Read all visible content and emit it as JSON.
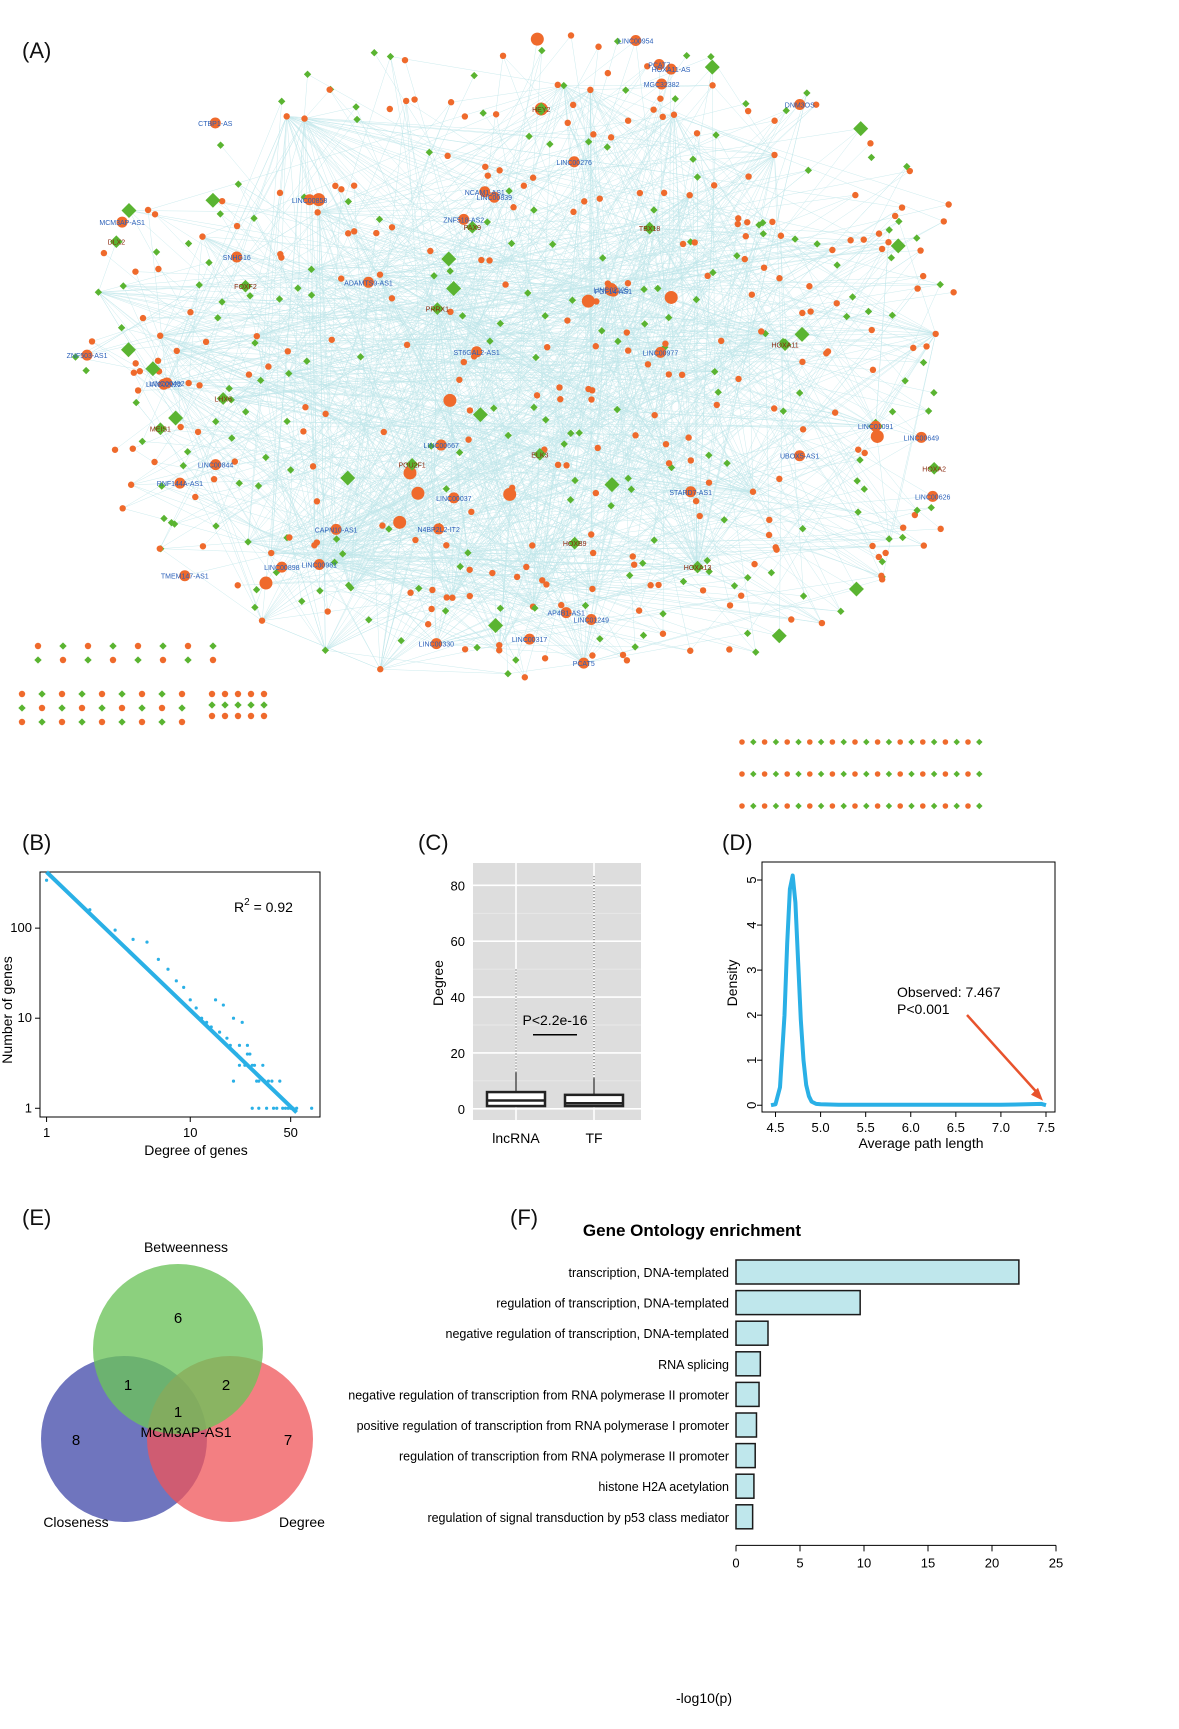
{
  "panels": {
    "a": "(A)",
    "b": "(B)",
    "c": "(C)",
    "d": "(D)",
    "e": "(E)",
    "f": "(F)"
  },
  "colors": {
    "lncrna": "#ef6a2c",
    "tf": "#5ab431",
    "edge": "#bfe6ea",
    "line": "#2ab0e6",
    "arrow": "#e8532d",
    "ggplot_bg": "#dddddd",
    "bar": "#bfe7ec",
    "venn_green": "#6cc35a",
    "venn_blue": "#4f57b0",
    "venn_red": "#ef5458"
  },
  "network": {
    "legend_note": "",
    "node_types": [
      "lncrna-circle",
      "tf-diamond"
    ],
    "gene_labels": [
      "TBX18",
      "PRRX1",
      "LINC00330",
      "LINC01091",
      "HOXA13",
      "LINC00482",
      "PCAT5",
      "FGF14-AS1",
      "LINC00981",
      "DLX2",
      "HOXA2",
      "LINC00977",
      "LINC00858",
      "LINC00317",
      "HOXA11",
      "FOXF2",
      "HOXB9",
      "LHX6",
      "SNHG16",
      "LINC00844",
      "ST6GAL2-AS1",
      "ADAMTS9-AS1",
      "LINC00626",
      "LINC00839",
      "HOXA11-AS",
      "HEY2",
      "LINC00667",
      "PAX9",
      "LINC02125",
      "LINC01249",
      "LINC00649",
      "PCAT7",
      "LINC00276",
      "LINC02022",
      "MGC32382",
      "LINC00037",
      "AP4B1-AS1",
      "N4BP2L2-IT2",
      "ELK3",
      "CAPN10-AS1",
      "LINC00954",
      "LINC00898",
      "ZNF518-AS2",
      "MEIS1",
      "RNF144A-AS1",
      "MCM3AP-AS1",
      "STARD7-AS1",
      "NCAM1-AS1",
      "POU2F1",
      "TMEM147-AS1",
      "CTBP1-AS",
      "UBOX5-AS1",
      "DNM3OS",
      "ZNF503-AS1"
    ]
  },
  "chart_data": [
    {
      "panel": "B",
      "type": "scatter",
      "title": "",
      "xlabel": "Degree of genes",
      "ylabel": "Number of genes",
      "xscale": "log",
      "yscale": "log",
      "xlim": [
        0.9,
        80
      ],
      "ylim": [
        0.8,
        420
      ],
      "xticks": [
        1,
        10,
        50
      ],
      "yticks": [
        1,
        10,
        100
      ],
      "annotation": "R² = 0.92",
      "annotation_base": "R",
      "annotation_sup": "2",
      "annotation_rest": " = 0.92",
      "points": [
        [
          1,
          340
        ],
        [
          2,
          160
        ],
        [
          3,
          95
        ],
        [
          4,
          75
        ],
        [
          5,
          70
        ],
        [
          6,
          45
        ],
        [
          7,
          35
        ],
        [
          8,
          26
        ],
        [
          9,
          22
        ],
        [
          10,
          16
        ],
        [
          11,
          13
        ],
        [
          12,
          10
        ],
        [
          13,
          9
        ],
        [
          14,
          8
        ],
        [
          15,
          16
        ],
        [
          16,
          7
        ],
        [
          17,
          14
        ],
        [
          18,
          6
        ],
        [
          19,
          5
        ],
        [
          20,
          10
        ],
        [
          21,
          4
        ],
        [
          22,
          5
        ],
        [
          23,
          9
        ],
        [
          24,
          3
        ],
        [
          25,
          4
        ],
        [
          26,
          4
        ],
        [
          27,
          3
        ],
        [
          28,
          3
        ],
        [
          29,
          2
        ],
        [
          30,
          2
        ],
        [
          32,
          3
        ],
        [
          33,
          2
        ],
        [
          35,
          2
        ],
        [
          37,
          2
        ],
        [
          38,
          1
        ],
        [
          40,
          1
        ],
        [
          42,
          2
        ],
        [
          44,
          1
        ],
        [
          46,
          1
        ],
        [
          48,
          1
        ],
        [
          50,
          1
        ],
        [
          52,
          1
        ],
        [
          55,
          1
        ],
        [
          70,
          1
        ],
        [
          20,
          2
        ],
        [
          22,
          3
        ],
        [
          25,
          5
        ],
        [
          27,
          1
        ],
        [
          30,
          1
        ],
        [
          34,
          1
        ]
      ],
      "fit": {
        "x": [
          1,
          55
        ],
        "y": [
          420,
          0.9
        ]
      },
      "gridlines": false,
      "legend": "none"
    },
    {
      "panel": "C",
      "type": "box",
      "title": "",
      "xlabel": "",
      "ylabel": "Degree",
      "ylim": [
        -4,
        88
      ],
      "yticks": [
        0,
        20,
        40,
        60,
        80
      ],
      "categories": [
        "lncRNA",
        "TF"
      ],
      "boxes": [
        {
          "min": 0,
          "q1": 1,
          "median": 3,
          "q3": 6,
          "whisker_hi": 13,
          "max": 50
        },
        {
          "min": 0,
          "q1": 1,
          "median": 2,
          "q3": 5,
          "whisker_hi": 11,
          "max": 84
        }
      ],
      "annotation": "P<2.2e-16",
      "gridlines": true,
      "legend": "none"
    },
    {
      "panel": "D",
      "type": "line",
      "title": "",
      "xlabel": "Average path length",
      "ylabel": "Density",
      "xlim": [
        4.35,
        7.6
      ],
      "ylim": [
        -0.15,
        5.4
      ],
      "xticks": [
        4.5,
        5.0,
        5.5,
        6.0,
        6.5,
        7.0,
        7.5
      ],
      "yticks": [
        0,
        1,
        2,
        3,
        4,
        5
      ],
      "x": [
        4.45,
        4.5,
        4.55,
        4.6,
        4.63,
        4.66,
        4.69,
        4.72,
        4.75,
        4.78,
        4.81,
        4.84,
        4.87,
        4.9,
        4.95,
        5.0,
        5.2,
        5.5,
        6.0,
        6.5,
        7.0,
        7.45,
        7.5
      ],
      "y": [
        0,
        0.02,
        0.4,
        2.0,
        3.6,
        4.8,
        5.1,
        4.5,
        3.2,
        1.9,
        1.0,
        0.45,
        0.2,
        0.08,
        0.03,
        0.02,
        0.01,
        0.01,
        0.01,
        0.01,
        0.01,
        0.03,
        0
      ],
      "annotation": "Observed: 7.467\nP<0.001",
      "annotation_line1": "Observed: 7.467",
      "annotation_line2": "P<0.001",
      "observed": 7.467,
      "gridlines": false,
      "legend": "none"
    },
    {
      "panel": "E",
      "type": "venn",
      "title": "",
      "sets": [
        "Betweenness",
        "Closeness",
        "Degree"
      ],
      "regions": {
        "betweenness_only": 6,
        "closeness_only": 8,
        "degree_only": 7,
        "betweenness_closeness": 1,
        "betweenness_degree": 2,
        "all_three": 1
      },
      "center_label": "MCM3AP-AS1"
    },
    {
      "panel": "F",
      "type": "bar",
      "orientation": "horizontal",
      "title": "Gene Ontology enrichment",
      "xlabel": "-log10(p)",
      "xlim": [
        0,
        25
      ],
      "xticks": [
        0,
        5,
        10,
        15,
        20,
        25
      ],
      "categories": [
        "transcription, DNA-templated",
        "regulation of transcription, DNA-templated",
        "negative regulation of transcription, DNA-templated",
        "RNA splicing",
        "negative regulation of transcription from RNA polymerase II promoter",
        "positive regulation of transcription from RNA polymerase I promoter",
        "regulation of transcription from RNA polymerase II promoter",
        "histone H2A acetylation",
        "regulation of signal transduction by p53 class mediator"
      ],
      "values": [
        22.1,
        9.7,
        2.5,
        1.9,
        1.8,
        1.6,
        1.5,
        1.4,
        1.3
      ],
      "gridlines": false,
      "legend": "none"
    }
  ]
}
